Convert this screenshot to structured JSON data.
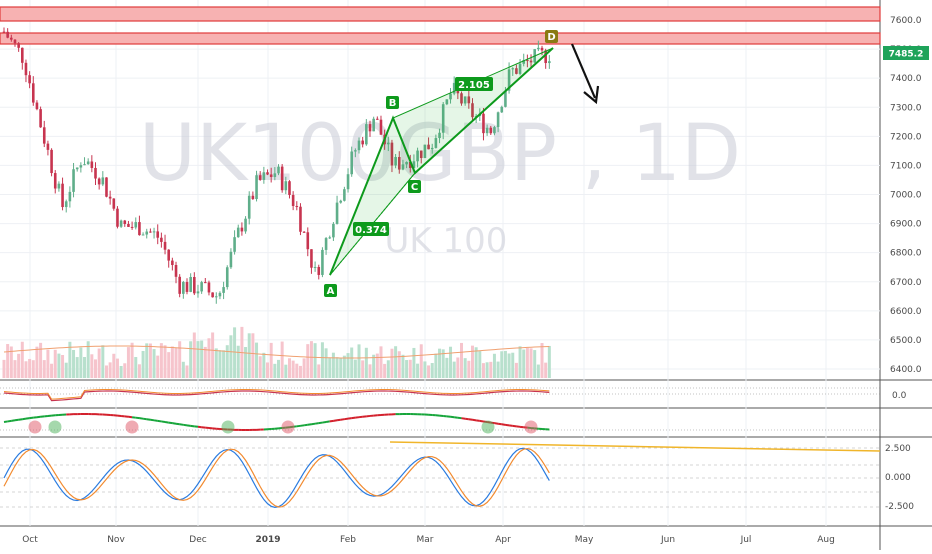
{
  "watermark": {
    "symbol": "UK100GBP , 1D",
    "description": "UK 100"
  },
  "price_axis": {
    "labels": [
      "7600.0",
      "7500.0",
      "7400.0",
      "7300.0",
      "7200.0",
      "7100.0",
      "7000.0",
      "6900.0",
      "6800.0",
      "6700.0",
      "6600.0",
      "6500.0",
      "6400.0"
    ],
    "current": "7485.2"
  },
  "macd_axis": {
    "labels": [
      "0.0"
    ]
  },
  "stoch_axis": {
    "labels": [
      "2.500",
      "0.000",
      "-2.500"
    ]
  },
  "time_axis": {
    "labels": [
      "Oct",
      "Nov",
      "Dec",
      "2019",
      "Feb",
      "Mar",
      "Apr",
      "May",
      "Jun",
      "Jul",
      "Aug"
    ]
  },
  "pattern": {
    "points": [
      "A",
      "B",
      "C",
      "D"
    ],
    "ratios": [
      "0.374",
      "2.105"
    ]
  },
  "colors": {
    "bull": "#7fc4a6",
    "bear": "#e0566f",
    "zone_fill": "#f7b2b2",
    "zone_border": "#e03b3b",
    "pattern": "#0d9a1c",
    "arrow": "#111111",
    "trendline": "#f0b52a",
    "stoch_k": "#2b7ce0",
    "stoch_d": "#f28b30",
    "ma": "#f0a070"
  },
  "chart_data": {
    "type": "line",
    "title": "UK100GBP , 1D",
    "ylabel": "",
    "ylim": [
      6350,
      7660
    ],
    "series": [
      {
        "values": [
          7560,
          7470,
          7210,
          6960,
          7130,
          7060,
          6890,
          6890,
          6850,
          6690,
          6680,
          6650,
          6860,
          7040,
          7080,
          6960,
          6720,
          6950,
          7150,
          7270,
          7100,
          7130,
          7180,
          7360,
          7280,
          7220,
          7420,
          7460,
          7485
        ]
      }
    ]
  }
}
